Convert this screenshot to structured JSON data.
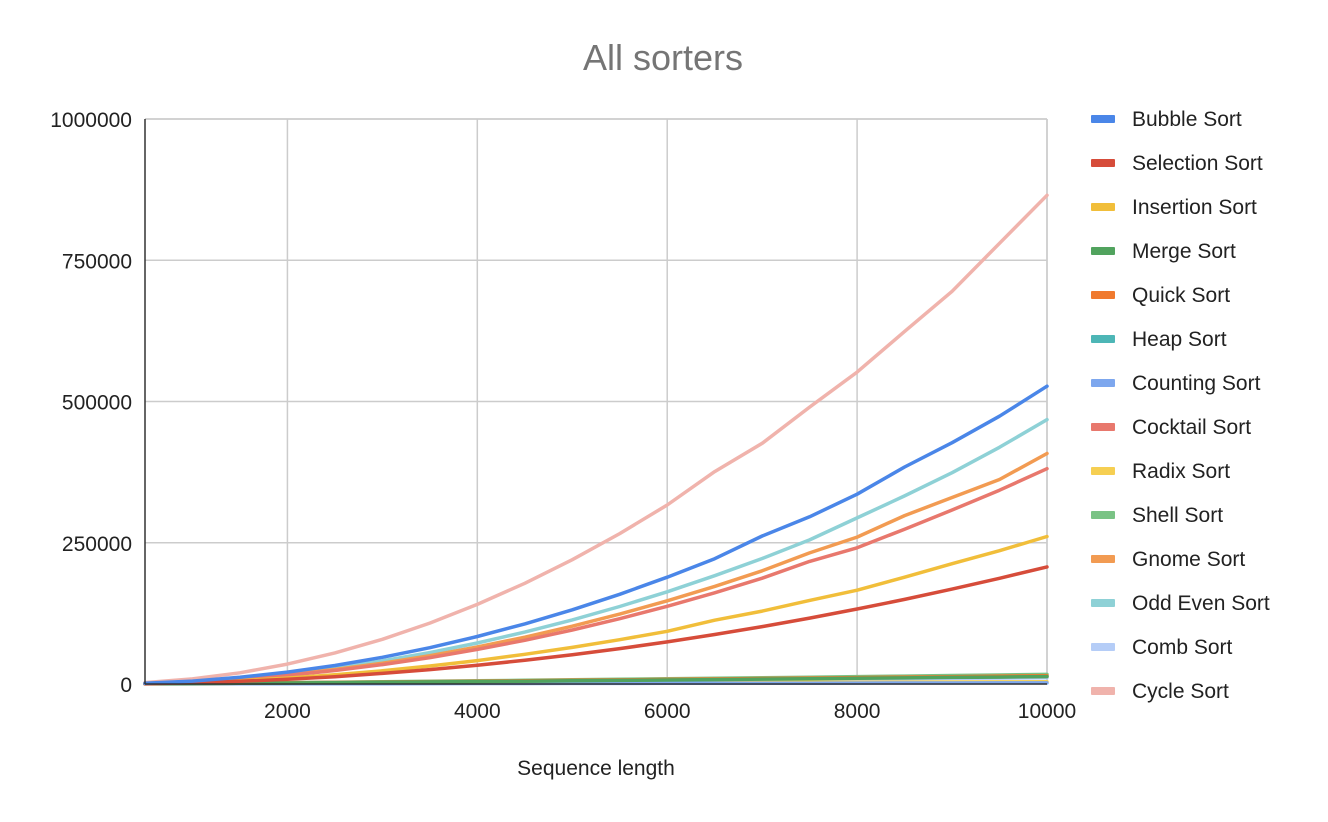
{
  "chart_data": {
    "type": "line",
    "title": "All sorters",
    "xlabel": "Sequence length",
    "ylabel": "",
    "xlim": [
      500,
      10000
    ],
    "ylim": [
      0,
      1000000
    ],
    "xticks": [
      2000,
      4000,
      6000,
      8000,
      10000
    ],
    "yticks": [
      0,
      250000,
      500000,
      750000,
      1000000
    ],
    "x_tick_labels": [
      "2000",
      "4000",
      "6000",
      "8000",
      "10000"
    ],
    "y_tick_labels": [
      "0",
      "250000",
      "500000",
      "750000",
      "1000000"
    ],
    "grid": true,
    "legend_position": "right",
    "x": [
      500,
      1000,
      1500,
      2000,
      2500,
      3000,
      3500,
      4000,
      4500,
      5000,
      5500,
      6000,
      6500,
      7000,
      7500,
      8000,
      8500,
      9000,
      9500,
      10000
    ],
    "series": [
      {
        "name": "Bubble Sort",
        "color": "#4a86e8",
        "values": [
          1300,
          5200,
          11800,
          21000,
          32800,
          47300,
          64300,
          84000,
          106300,
          131300,
          158800,
          189000,
          221800,
          262000,
          296000,
          336000,
          384000,
          427000,
          474000,
          527000
        ]
      },
      {
        "name": "Selection Sort",
        "color": "#d64c3a",
        "values": [
          500,
          2100,
          4700,
          8300,
          13000,
          18700,
          25400,
          33200,
          42000,
          51900,
          62700,
          74600,
          87600,
          101600,
          116600,
          132700,
          149800,
          167900,
          187100,
          207300
        ]
      },
      {
        "name": "Insertion Sort",
        "color": "#f1be3a",
        "values": [
          650,
          2600,
          5800,
          10400,
          16200,
          23400,
          31800,
          41500,
          52500,
          64800,
          78400,
          93300,
          113000,
          129000,
          148000,
          166000,
          189000,
          213000,
          236000,
          261000
        ]
      },
      {
        "name": "Merge Sort",
        "color": "#51a35e",
        "values": [
          300,
          700,
          1200,
          1800,
          2400,
          3000,
          3700,
          4300,
          5000,
          5700,
          6400,
          7100,
          7800,
          8600,
          9300,
          10100,
          10800,
          11600,
          12300,
          13100
        ]
      },
      {
        "name": "Quick Sort",
        "color": "#f07a2e",
        "values": [
          400,
          900,
          1500,
          2100,
          2800,
          3500,
          4200,
          5000,
          5700,
          6500,
          7300,
          8100,
          8900,
          9700,
          10500,
          11400,
          12200,
          13000,
          13900,
          14700
        ]
      },
      {
        "name": "Heap Sort",
        "color": "#4db6b6",
        "values": [
          350,
          800,
          1350,
          1950,
          2600,
          3250,
          3950,
          4650,
          5350,
          6100,
          6850,
          7600,
          8350,
          9150,
          9950,
          10750,
          11550,
          12350,
          13200,
          14000
        ]
      },
      {
        "name": "Counting Sort",
        "color": "#7da7ee",
        "values": [
          100,
          200,
          300,
          400,
          500,
          600,
          700,
          800,
          900,
          1000,
          1100,
          1200,
          1300,
          1400,
          1500,
          1600,
          1700,
          1800,
          1900,
          2000
        ]
      },
      {
        "name": "Cocktail Sort",
        "color": "#e8786d",
        "values": [
          950,
          3800,
          8600,
          15300,
          23900,
          34400,
          46800,
          61200,
          77400,
          95600,
          115600,
          137600,
          161500,
          187300,
          217000,
          241000,
          274000,
          308000,
          343000,
          381000
        ]
      },
      {
        "name": "Radix Sort",
        "color": "#f6cf52",
        "values": [
          200,
          400,
          600,
          800,
          1000,
          1200,
          1400,
          1600,
          1800,
          2000,
          2200,
          2400,
          2600,
          2800,
          3000,
          3200,
          3400,
          3600,
          3800,
          4000
        ]
      },
      {
        "name": "Shell Sort",
        "color": "#7ac385",
        "values": [
          400,
          1000,
          1700,
          2400,
          3200,
          4000,
          4800,
          5700,
          6600,
          7500,
          8400,
          9300,
          10200,
          11100,
          12100,
          13100,
          14000,
          15000,
          16000,
          17000
        ]
      },
      {
        "name": "Gnome Sort",
        "color": "#f29b52",
        "values": [
          1000,
          4000,
          9200,
          16400,
          25600,
          36800,
          50100,
          65400,
          82800,
          102300,
          123700,
          147200,
          172800,
          200400,
          232000,
          260000,
          298000,
          330000,
          362000,
          408000
        ]
      },
      {
        "name": "Odd Even Sort",
        "color": "#8ed1d6",
        "values": [
          1100,
          4500,
          10200,
          18200,
          28400,
          40800,
          55600,
          72600,
          91900,
          113400,
          137200,
          163200,
          191600,
          222200,
          255000,
          294000,
          333000,
          374000,
          419000,
          468000
        ]
      },
      {
        "name": "Comb Sort",
        "color": "#b5cdf7",
        "values": [
          300,
          700,
          1200,
          1700,
          2200,
          2800,
          3300,
          3900,
          4500,
          5100,
          5700,
          6300,
          6900,
          7500,
          8100,
          8700,
          9300,
          9900,
          10500,
          11100
        ]
      },
      {
        "name": "Cycle Sort",
        "color": "#f0b3ac",
        "values": [
          2500,
          9000,
          19800,
          35200,
          55000,
          79200,
          107800,
          140800,
          178200,
          220000,
          266200,
          316800,
          376000,
          426000,
          490000,
          552000,
          624000,
          695000,
          780000,
          865000
        ]
      }
    ]
  }
}
